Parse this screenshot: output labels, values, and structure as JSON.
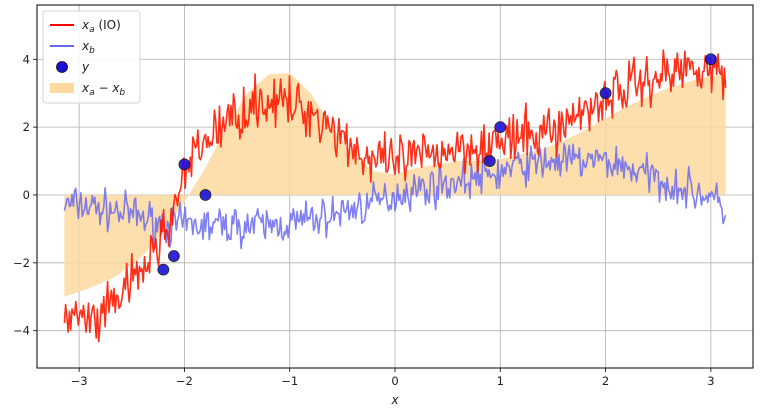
{
  "chart_data": {
    "type": "line",
    "title": "",
    "xlabel": "x",
    "ylabel": "",
    "xlim": [
      -3.4,
      3.4
    ],
    "ylim": [
      -5.1,
      5.6
    ],
    "grid": true,
    "legend_position": "top-left",
    "xticks": [
      -3,
      -2,
      -1,
      0,
      1,
      2,
      3
    ],
    "xtick_labels": [
      "−3",
      "−2",
      "−1",
      "0",
      "1",
      "2",
      "3"
    ],
    "yticks": [
      -4,
      -2,
      0,
      2,
      4
    ],
    "ytick_labels": [
      "−4",
      "−2",
      "0",
      "2",
      "4"
    ],
    "legend": [
      {
        "key": "xa",
        "base": "x",
        "sub": "a",
        "suffix": " (IO)",
        "color": "#ff0000"
      },
      {
        "key": "xb",
        "base": "x",
        "sub": "b",
        "suffix": "",
        "color": "#6a6af0"
      },
      {
        "key": "y",
        "base": "y",
        "sub": "",
        "suffix": "",
        "color": "#1b10d8"
      },
      {
        "key": "diff",
        "base": "x",
        "sub": "a",
        "mid": " − ",
        "base2": "x",
        "sub2": "b",
        "color": "#fdd9a0"
      }
    ],
    "series": [
      {
        "name": "xa (IO)",
        "color": "#ff1a00",
        "x": [
          -3.14,
          -2.97,
          -2.8,
          -2.63,
          -2.46,
          -2.29,
          -2.12,
          -1.95,
          -1.78,
          -1.61,
          -1.44,
          -1.27,
          -1.1,
          -0.93,
          -0.76,
          -0.59,
          -0.42,
          -0.25,
          -0.08,
          0.09,
          0.26,
          0.43,
          0.6,
          0.77,
          0.94,
          1.11,
          1.28,
          1.45,
          1.62,
          1.79,
          1.96,
          2.13,
          2.3,
          2.47,
          2.64,
          2.81,
          2.98,
          3.14
        ],
        "y": [
          -3.6,
          -3.7,
          -3.8,
          -3.0,
          -2.5,
          -1.7,
          -0.6,
          0.9,
          1.7,
          2.1,
          2.5,
          2.8,
          2.7,
          2.6,
          2.4,
          2.0,
          1.5,
          1.0,
          0.9,
          1.0,
          1.1,
          1.3,
          1.4,
          1.5,
          1.5,
          1.6,
          1.7,
          1.9,
          2.1,
          2.5,
          2.8,
          3.1,
          3.3,
          3.5,
          3.6,
          3.8,
          3.9,
          3.2
        ]
      },
      {
        "name": "xb",
        "color": "#6a6af0",
        "x": [
          -3.14,
          -2.97,
          -2.8,
          -2.63,
          -2.46,
          -2.29,
          -2.12,
          -1.95,
          -1.78,
          -1.61,
          -1.44,
          -1.27,
          -1.1,
          -0.93,
          -0.76,
          -0.59,
          -0.42,
          -0.25,
          -0.08,
          0.09,
          0.26,
          0.43,
          0.6,
          0.77,
          0.94,
          1.11,
          1.28,
          1.45,
          1.62,
          1.79,
          1.96,
          2.13,
          2.3,
          2.47,
          2.64,
          2.81,
          2.98,
          3.14
        ],
        "y": [
          -0.3,
          -0.3,
          -0.4,
          -0.5,
          -0.6,
          -0.8,
          -0.9,
          -0.9,
          -0.9,
          -0.9,
          -0.9,
          -0.9,
          -0.9,
          -0.8,
          -0.7,
          -0.6,
          -0.4,
          -0.3,
          -0.1,
          0.1,
          0.2,
          0.3,
          0.4,
          0.5,
          0.6,
          0.8,
          0.9,
          1.0,
          1.0,
          1.0,
          1.0,
          0.9,
          0.7,
          0.5,
          0.3,
          0.1,
          0.0,
          -0.5
        ]
      }
    ],
    "fill_between": {
      "name": "xa − xb",
      "color": "#fdd9a0",
      "x": [
        -3.14,
        -2.9,
        -2.65,
        -2.4,
        -2.2,
        -2.0,
        -1.8,
        -1.6,
        -1.4,
        -1.2,
        -1.0,
        -0.8,
        -0.6,
        -0.4,
        -0.2,
        0.0,
        0.2,
        0.4,
        0.6,
        0.8,
        1.0,
        1.2,
        1.4,
        1.6,
        1.8,
        2.0,
        2.2,
        2.4,
        2.6,
        2.8,
        3.0,
        3.14
      ],
      "y": [
        -3.0,
        -2.75,
        -2.4,
        -1.8,
        -1.1,
        -0.2,
        0.8,
        2.0,
        3.0,
        3.55,
        3.6,
        3.0,
        2.0,
        1.2,
        0.7,
        0.6,
        0.8,
        0.9,
        1.0,
        1.0,
        1.05,
        1.2,
        1.35,
        1.6,
        1.9,
        2.25,
        2.6,
        2.9,
        3.15,
        3.35,
        3.5,
        3.55
      ]
    },
    "scatter": {
      "name": "y",
      "color": "#1b10d8",
      "x": [
        -2.2,
        -2.1,
        -2.0,
        -1.8,
        0.9,
        1.0,
        2.0,
        3.0
      ],
      "y": [
        -2.2,
        -1.8,
        0.9,
        0.0,
        1.0,
        2.0,
        3.0,
        4.0
      ]
    }
  }
}
